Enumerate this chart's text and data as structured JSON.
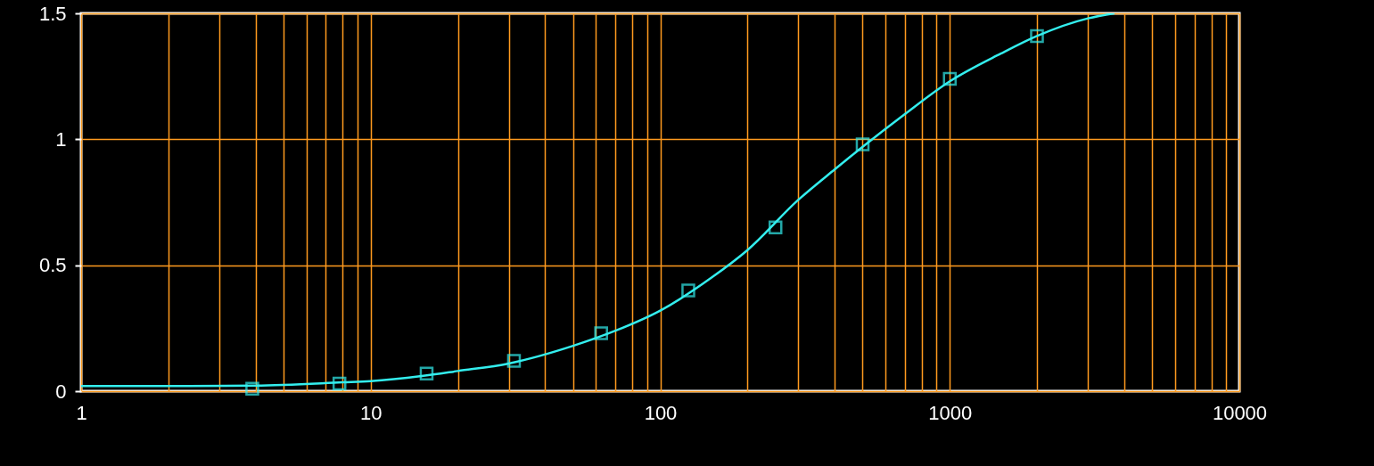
{
  "chart_data": {
    "type": "scatter",
    "log": "x",
    "grid": true,
    "xlim": [
      1,
      10000
    ],
    "xticks": [
      1,
      {
        "value": 2,
        "label": null
      },
      {
        "value": 3,
        "label": null
      },
      {
        "value": 4,
        "label": null
      },
      {
        "value": 5,
        "label": null
      },
      {
        "value": 6,
        "label": null
      },
      {
        "value": 7,
        "label": null
      },
      {
        "value": 8,
        "label": null
      },
      {
        "value": 9,
        "label": null
      },
      10,
      {
        "value": 20,
        "label": null
      },
      {
        "value": 30,
        "label": null
      },
      {
        "value": 40,
        "label": null
      },
      {
        "value": 50,
        "label": null
      },
      {
        "value": 60,
        "label": null
      },
      {
        "value": 70,
        "label": null
      },
      {
        "value": 80,
        "label": null
      },
      {
        "value": 90,
        "label": null
      },
      100,
      {
        "value": 200,
        "label": null
      },
      {
        "value": 300,
        "label": null
      },
      {
        "value": 400,
        "label": null
      },
      {
        "value": 500,
        "label": null
      },
      {
        "value": 600,
        "label": null
      },
      {
        "value": 700,
        "label": null
      },
      {
        "value": 800,
        "label": null
      },
      {
        "value": 900,
        "label": null
      },
      1000,
      {
        "value": 2000,
        "label": null
      },
      {
        "value": 3000,
        "label": null
      },
      {
        "value": 4000,
        "label": null
      },
      {
        "value": 5000,
        "label": null
      },
      {
        "value": 6000,
        "label": null
      },
      {
        "value": 7000,
        "label": null
      },
      {
        "value": 8000,
        "label": null
      },
      {
        "value": 9000,
        "label": null
      },
      10000
    ],
    "ylim": [
      0,
      1.5
    ],
    "yticks": [
      0,
      0.5,
      1,
      1.5
    ],
    "series": [
      {
        "type": "line",
        "color": "#33eeee",
        "marker": "none",
        "x": [
          1,
          2,
          4,
          8,
          10,
          15,
          20,
          30,
          50,
          70,
          100,
          150,
          200,
          300,
          400,
          500,
          700,
          1000,
          1500,
          2000,
          3000,
          3700
        ],
        "values": [
          0.02,
          0.02,
          0.022,
          0.035,
          0.04,
          0.06,
          0.08,
          0.11,
          0.18,
          0.24,
          0.32,
          0.45,
          0.56,
          0.76,
          0.88,
          0.97,
          1.1,
          1.23,
          1.34,
          1.41,
          1.48,
          1.5
        ]
      },
      {
        "color": "#33eeee",
        "marker": "square",
        "x": [
          3.9,
          7.8,
          15.6,
          31.25,
          62.5,
          125,
          250,
          500,
          1000,
          2000
        ],
        "values": [
          0.01,
          0.03,
          0.07,
          0.12,
          0.23,
          0.4,
          0.65,
          0.98,
          1.24,
          1.41
        ]
      }
    ]
  }
}
